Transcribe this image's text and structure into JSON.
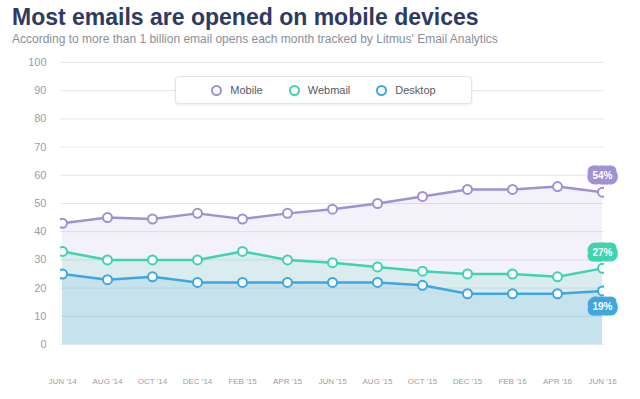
{
  "chart_data": {
    "type": "area",
    "title": "Most emails are opened on mobile devices",
    "subtitle": "According to more than 1 billion email opens each month tracked by Litmus' Email Analytics",
    "categories": [
      "JUN '14",
      "AUG '14",
      "OCT '14",
      "DEC '14",
      "FEB '15",
      "APR '15",
      "JUN '15",
      "AUG '15",
      "OCT '15",
      "DEC '15",
      "FEB '16",
      "APR '16",
      "JUN '16"
    ],
    "series": [
      {
        "name": "Mobile",
        "color": "#a191d3",
        "values": [
          43,
          45,
          44.5,
          46.5,
          44.5,
          46.5,
          48,
          50,
          52.5,
          55,
          55,
          56,
          54
        ],
        "value_labels": [
          null,
          null,
          null,
          null,
          null,
          null,
          null,
          null,
          null,
          null,
          null,
          null,
          "54%"
        ]
      },
      {
        "name": "Webmail",
        "color": "#3fd3b1",
        "values": [
          33,
          30,
          30,
          30,
          33,
          30,
          29,
          27.5,
          26,
          25,
          25,
          24,
          27
        ],
        "value_labels": [
          null,
          null,
          null,
          null,
          null,
          null,
          null,
          null,
          null,
          null,
          null,
          null,
          "27%"
        ]
      },
      {
        "name": "Desktop",
        "color": "#3ea7df",
        "values": [
          25,
          23,
          24,
          22,
          22,
          22,
          22,
          22,
          21,
          18,
          18,
          18,
          19
        ],
        "value_labels": [
          null,
          null,
          null,
          null,
          null,
          null,
          null,
          null,
          null,
          null,
          null,
          null,
          "19%"
        ]
      }
    ],
    "ylim": [
      0,
      100
    ],
    "yticks": [
      0,
      10,
      20,
      30,
      40,
      50,
      60,
      70,
      80,
      90,
      100
    ],
    "grid": true,
    "legend": "top",
    "marker": "circle"
  }
}
